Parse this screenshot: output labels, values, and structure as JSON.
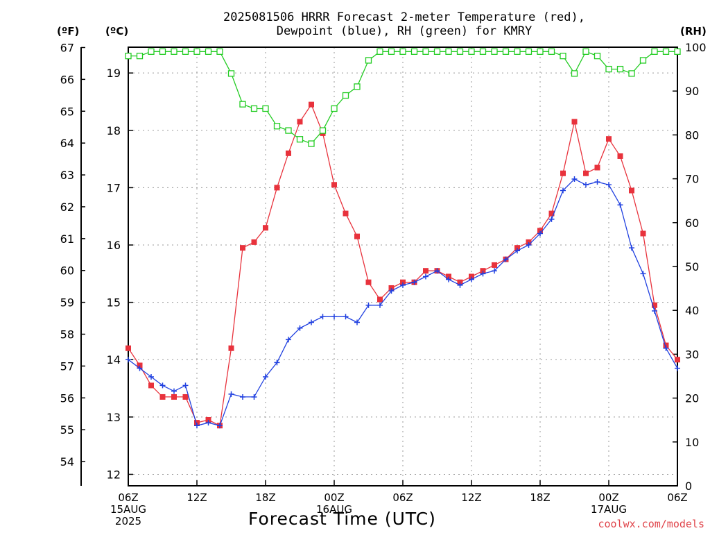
{
  "chart_data": {
    "type": "line",
    "title_line1": "2025081506 HRRR Forecast 2-meter Temperature (red),",
    "title_line2": "Dewpoint (blue), RH (green) for KMRY",
    "unit_left_f": "(ºF)",
    "unit_left_c": "(ºC)",
    "unit_right": "(RH)",
    "xlabel": "Forecast Time (UTC)",
    "credit": "coolwx.com/models",
    "x_start": "2025-08-15T06:00Z",
    "x_interval_hours": 1,
    "x_ticks": [
      {
        "hour": 0,
        "lines": [
          "06Z",
          "15AUG",
          "2025"
        ]
      },
      {
        "hour": 6,
        "lines": [
          "12Z"
        ]
      },
      {
        "hour": 12,
        "lines": [
          "18Z"
        ]
      },
      {
        "hour": 18,
        "lines": [
          "00Z",
          "16AUG"
        ]
      },
      {
        "hour": 24,
        "lines": [
          "06Z"
        ]
      },
      {
        "hour": 30,
        "lines": [
          "12Z"
        ]
      },
      {
        "hour": 36,
        "lines": [
          "18Z"
        ]
      },
      {
        "hour": 42,
        "lines": [
          "00Z",
          "17AUG"
        ]
      },
      {
        "hour": 48,
        "lines": [
          "06Z"
        ]
      }
    ],
    "y_celsius_ticks": [
      12,
      13,
      14,
      15,
      16,
      17,
      18,
      19
    ],
    "y_celsius_range": [
      11.8,
      19.45
    ],
    "y_fahrenheit_ticks": [
      54,
      55,
      56,
      57,
      58,
      59,
      60,
      61,
      62,
      63,
      64,
      65,
      66,
      67
    ],
    "y_rh_ticks": [
      0,
      10,
      20,
      30,
      40,
      50,
      60,
      70,
      80,
      90,
      100
    ],
    "y_rh_range": [
      0,
      100
    ],
    "grid": true,
    "series": [
      {
        "name": "Temperature",
        "color": "#e8323c",
        "marker": "filled-square",
        "axis": "celsius",
        "values": [
          14.2,
          13.9,
          13.55,
          13.35,
          13.35,
          13.35,
          12.9,
          12.95,
          12.85,
          14.2,
          15.95,
          16.05,
          16.3,
          17.0,
          17.6,
          18.15,
          18.45,
          17.95,
          17.05,
          16.55,
          16.15,
          15.35,
          15.05,
          15.25,
          15.35,
          15.35,
          15.55,
          15.55,
          15.45,
          15.35,
          15.45,
          15.55,
          15.65,
          15.75,
          15.95,
          16.05,
          16.25,
          16.55,
          17.25,
          18.15,
          17.25,
          17.35,
          17.85,
          17.55,
          16.95,
          16.2,
          14.95,
          14.25,
          14.0
        ]
      },
      {
        "name": "Dewpoint",
        "color": "#2040e0",
        "marker": "plus",
        "axis": "celsius",
        "values": [
          14.0,
          13.85,
          13.7,
          13.55,
          13.45,
          13.55,
          12.85,
          12.9,
          12.85,
          13.4,
          13.35,
          13.35,
          13.7,
          13.95,
          14.35,
          14.55,
          14.65,
          14.75,
          14.75,
          14.75,
          14.65,
          14.95,
          14.95,
          15.2,
          15.3,
          15.35,
          15.45,
          15.55,
          15.4,
          15.3,
          15.4,
          15.5,
          15.55,
          15.75,
          15.9,
          16.0,
          16.2,
          16.45,
          16.95,
          17.15,
          17.05,
          17.1,
          17.05,
          16.7,
          15.95,
          15.5,
          14.85,
          14.2,
          13.85
        ]
      },
      {
        "name": "RH",
        "color": "#22cc22",
        "marker": "open-square",
        "axis": "rh",
        "values": [
          98,
          98,
          99,
          99,
          99,
          99,
          99,
          99,
          99,
          94,
          87,
          86,
          86,
          82,
          81,
          79,
          78,
          81,
          86,
          89,
          91,
          97,
          99,
          99,
          99,
          99,
          99,
          99,
          99,
          99,
          99,
          99,
          99,
          99,
          99,
          99,
          99,
          99,
          98,
          94,
          99,
          98,
          95,
          95,
          94,
          97,
          99,
          99,
          99
        ]
      }
    ]
  }
}
